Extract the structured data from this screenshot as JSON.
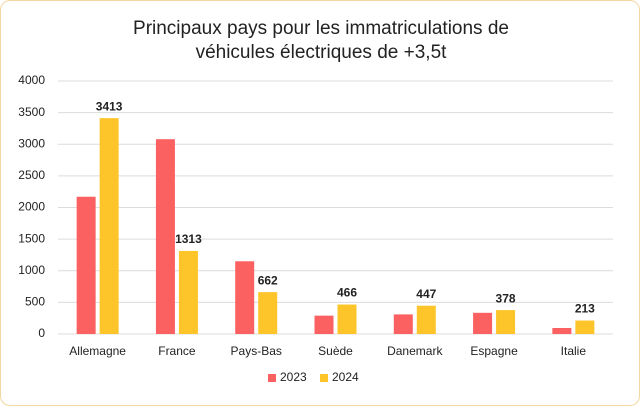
{
  "chart_data": {
    "type": "bar",
    "title": "Principaux pays pour les immatriculations de véhicules électriques de +3,5t",
    "categories": [
      "Allemagne",
      "France",
      "Pays-Bas",
      "Suède",
      "Danemark",
      "Espagne",
      "Italie"
    ],
    "series": [
      {
        "name": "2023",
        "color": "#fb6161",
        "values": [
          2170,
          3080,
          1150,
          290,
          310,
          335,
          95
        ],
        "data_labels": false
      },
      {
        "name": "2024",
        "color": "#fec52a",
        "values": [
          3413,
          1313,
          662,
          466,
          447,
          378,
          213
        ],
        "data_labels": true
      }
    ],
    "ylim": [
      0,
      4000
    ],
    "yticks": [
      0,
      500,
      1000,
      1500,
      2000,
      2500,
      3000,
      3500,
      4000
    ],
    "grid": true,
    "legend": "bottom"
  }
}
